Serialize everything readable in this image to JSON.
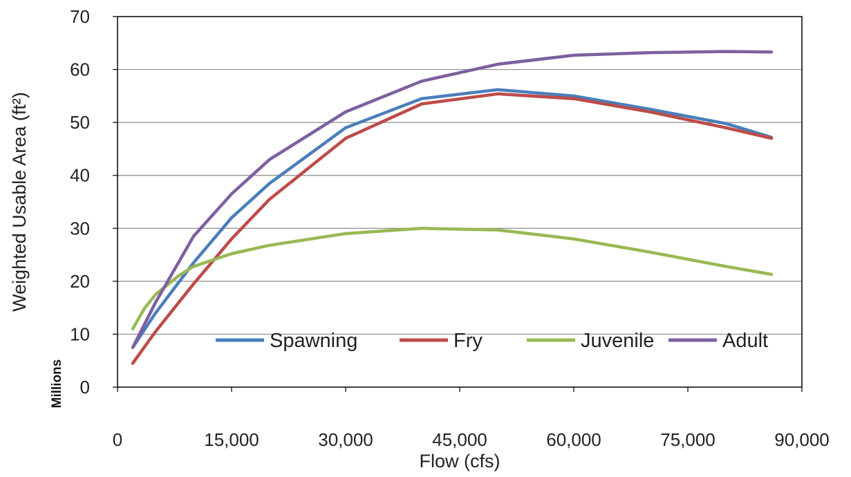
{
  "chart_data": {
    "type": "line",
    "title": "",
    "xlabel": "Flow (cfs)",
    "ylabel": "Weighted Usable Area (ft²)",
    "y_unit_label": "Millions",
    "xlim": [
      0,
      90000
    ],
    "ylim": [
      0,
      70
    ],
    "x_ticks": [
      0,
      15000,
      30000,
      45000,
      60000,
      75000,
      90000
    ],
    "x_tick_labels": [
      "0",
      "15,000",
      "30,000",
      "45,000",
      "60,000",
      "75,000",
      "90,000"
    ],
    "y_ticks": [
      0,
      10,
      20,
      30,
      40,
      50,
      60,
      70
    ],
    "y_tick_labels": [
      "0",
      "10",
      "20",
      "30",
      "40",
      "50",
      "60",
      "70"
    ],
    "grid": "horizontal",
    "legend_position": "inside-bottom",
    "series": [
      {
        "name": "Spawning",
        "color": "#4a7ebb",
        "x": [
          2000,
          5000,
          10000,
          15000,
          20000,
          30000,
          40000,
          50000,
          60000,
          70000,
          80000,
          86000
        ],
        "y": [
          7.5,
          14,
          23.5,
          32,
          38.5,
          49,
          54.5,
          56.2,
          55,
          52.5,
          49.8,
          47.2
        ]
      },
      {
        "name": "Fry",
        "color": "#be4b48",
        "x": [
          2000,
          5000,
          10000,
          15000,
          20000,
          30000,
          40000,
          50000,
          60000,
          70000,
          80000,
          86000
        ],
        "y": [
          4.5,
          10.5,
          19.5,
          28,
          35.5,
          47,
          53.5,
          55.4,
          54.5,
          52,
          49,
          47
        ]
      },
      {
        "name": "Juvenile",
        "color": "#98b954",
        "x": [
          2000,
          3500,
          5000,
          8000,
          10000,
          15000,
          20000,
          30000,
          40000,
          50000,
          60000,
          70000,
          80000,
          86000
        ],
        "y": [
          11,
          14.8,
          17.5,
          21,
          22.8,
          25.2,
          26.8,
          29,
          30,
          29.7,
          28,
          25.5,
          22.8,
          21.3
        ]
      },
      {
        "name": "Adult",
        "color": "#7d60a0",
        "x": [
          2000,
          5000,
          10000,
          15000,
          20000,
          30000,
          40000,
          50000,
          60000,
          70000,
          80000,
          86000
        ],
        "y": [
          7.5,
          16,
          28.5,
          36.5,
          43,
          52,
          57.8,
          61,
          62.7,
          63.2,
          63.4,
          63.3
        ]
      }
    ]
  }
}
